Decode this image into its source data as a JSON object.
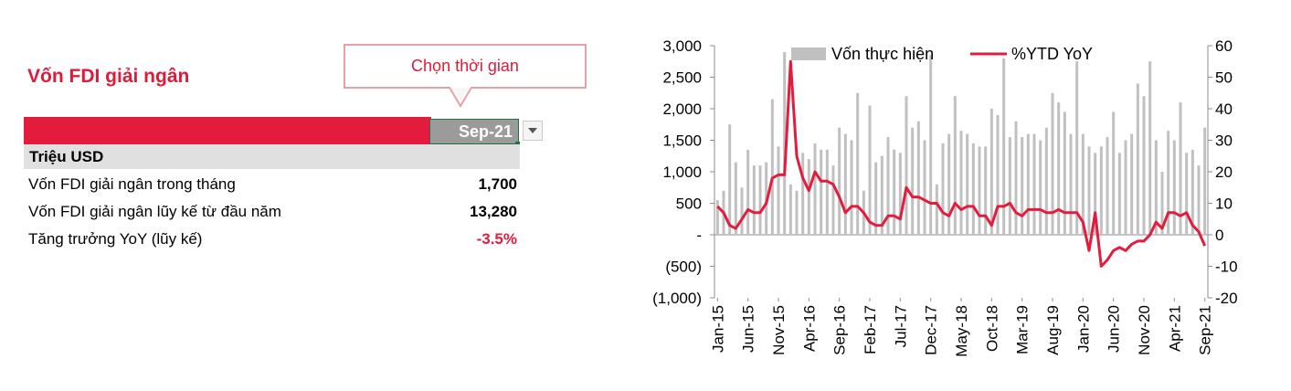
{
  "panel": {
    "title": "Vốn FDI giải ngân",
    "callout": "Chọn thời gian",
    "selected_period": "Sep-21",
    "unit_header": "Triệu USD",
    "rows": [
      {
        "label": "Vốn FDI giải ngân trong tháng",
        "value": "1,700"
      },
      {
        "label": "Vốn FDI giải ngân lũy kế từ đầu năm",
        "value": "13,280"
      },
      {
        "label": "Tăng trưởng YoY (lũy kế)",
        "value": "-3.5%"
      }
    ]
  },
  "colors": {
    "accent_red": "#e31c3d",
    "bar_gray": "#c0c0c0",
    "line_red": "#e31c3d",
    "callout_border": "#e8a0a8"
  },
  "chart_data": {
    "type": "bar+line",
    "legend": {
      "bars": "Vốn thực hiện",
      "line": "%YTD YoY"
    },
    "legend_placement": "top",
    "grid": false,
    "x_tick_labels": [
      "Jan-15",
      "Jun-15",
      "Nov-15",
      "Apr-16",
      "Sep-16",
      "Feb-17",
      "Jul-17",
      "Dec-17",
      "May-18",
      "Oct-18",
      "Mar-19",
      "Aug-19",
      "Jan-20",
      "Jun-20",
      "Nov-20",
      "Apr-21",
      "Sep-21"
    ],
    "x_tick_every": 5,
    "y_left": {
      "min": -1000,
      "max": 3000,
      "ticks": [
        "(1,000)",
        "(500)",
        "-",
        "500",
        "1,000",
        "1,500",
        "2,000",
        "2,500",
        "3,000"
      ]
    },
    "y_right": {
      "min": -20,
      "max": 60,
      "ticks": [
        "-20",
        "-10",
        "0",
        "10",
        "20",
        "30",
        "40",
        "50",
        "60"
      ]
    },
    "months": [
      "Jan-15",
      "Feb-15",
      "Mar-15",
      "Apr-15",
      "May-15",
      "Jun-15",
      "Jul-15",
      "Aug-15",
      "Sep-15",
      "Oct-15",
      "Nov-15",
      "Dec-15",
      "Jan-16",
      "Feb-16",
      "Mar-16",
      "Apr-16",
      "May-16",
      "Jun-16",
      "Jul-16",
      "Aug-16",
      "Sep-16",
      "Oct-16",
      "Nov-16",
      "Dec-16",
      "Jan-17",
      "Feb-17",
      "Mar-17",
      "Apr-17",
      "May-17",
      "Jun-17",
      "Jul-17",
      "Aug-17",
      "Sep-17",
      "Oct-17",
      "Nov-17",
      "Dec-17",
      "Jan-18",
      "Feb-18",
      "Mar-18",
      "Apr-18",
      "May-18",
      "Jun-18",
      "Jul-18",
      "Aug-18",
      "Sep-18",
      "Oct-18",
      "Nov-18",
      "Dec-18",
      "Jan-19",
      "Feb-19",
      "Mar-19",
      "Apr-19",
      "May-19",
      "Jun-19",
      "Jul-19",
      "Aug-19",
      "Sep-19",
      "Oct-19",
      "Nov-19",
      "Dec-19",
      "Jan-20",
      "Feb-20",
      "Mar-20",
      "Apr-20",
      "May-20",
      "Jun-20",
      "Jul-20",
      "Aug-20",
      "Sep-20",
      "Oct-20",
      "Nov-20",
      "Dec-20",
      "Jan-21",
      "Feb-21",
      "Mar-21",
      "Apr-21",
      "May-21",
      "Jun-21",
      "Jul-21",
      "Aug-21",
      "Sep-21"
    ],
    "series": [
      {
        "name": "Vốn thực hiện",
        "kind": "bar",
        "axis": "left",
        "values": [
          550,
          700,
          1750,
          1150,
          750,
          1350,
          1100,
          1100,
          1150,
          2150,
          1400,
          2900,
          800,
          700,
          1300,
          1200,
          1450,
          1350,
          1350,
          1100,
          1700,
          1600,
          1500,
          2250,
          700,
          2050,
          1150,
          1250,
          1550,
          1350,
          1300,
          2200,
          1700,
          1800,
          1500,
          2850,
          800,
          1450,
          1600,
          2200,
          1650,
          1600,
          1450,
          1400,
          1400,
          2000,
          1900,
          2800,
          1550,
          1800,
          1550,
          1600,
          1600,
          1500,
          1700,
          2250,
          2100,
          1950,
          1600,
          2750,
          1600,
          1400,
          1300,
          1400,
          1550,
          1950,
          1300,
          1500,
          1600,
          2400,
          2200,
          2750,
          1500,
          1000,
          1650,
          1500,
          2100,
          1300,
          1350,
          1100,
          1700
        ]
      },
      {
        "name": "%YTD YoY",
        "kind": "line",
        "axis": "right",
        "values": [
          9,
          7,
          3,
          2,
          5,
          8,
          7,
          7,
          10,
          18,
          19,
          19,
          55,
          25,
          18,
          14,
          20,
          17,
          17,
          16,
          12,
          7,
          9,
          9,
          7,
          4,
          3,
          3,
          6,
          6,
          5,
          15,
          12,
          12,
          11,
          10,
          10,
          7,
          6,
          10,
          8,
          9,
          9,
          6,
          6,
          3,
          9,
          9,
          10,
          7,
          6,
          8,
          8,
          8,
          7,
          7,
          8,
          7,
          7,
          7,
          4,
          -5,
          7,
          -10,
          -8,
          -5,
          -4,
          -5,
          -3,
          -2,
          -2,
          0,
          4,
          2,
          7,
          7,
          6,
          7,
          3,
          1,
          -3.5
        ]
      }
    ]
  }
}
